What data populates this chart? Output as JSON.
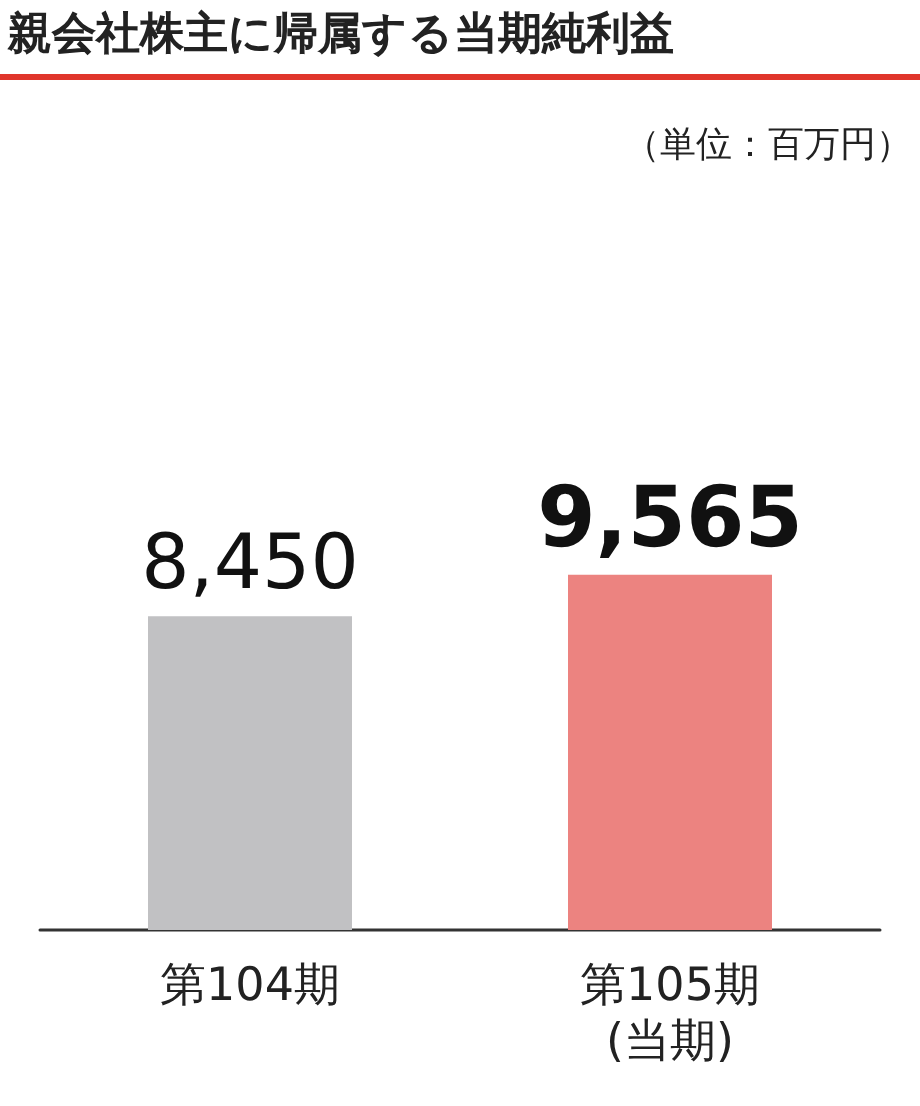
{
  "chart_data": {
    "type": "bar",
    "title": "親会社株主に帰属する当期純利益",
    "subtitle": "（単位：百万円）",
    "categories": [
      "第104期",
      "第105期\n(当期)"
    ],
    "values": [
      8450,
      9565
    ],
    "colors": [
      "#c1c1c3",
      "#ec8380"
    ],
    "value_labels": [
      "8,450",
      "9,565"
    ]
  }
}
